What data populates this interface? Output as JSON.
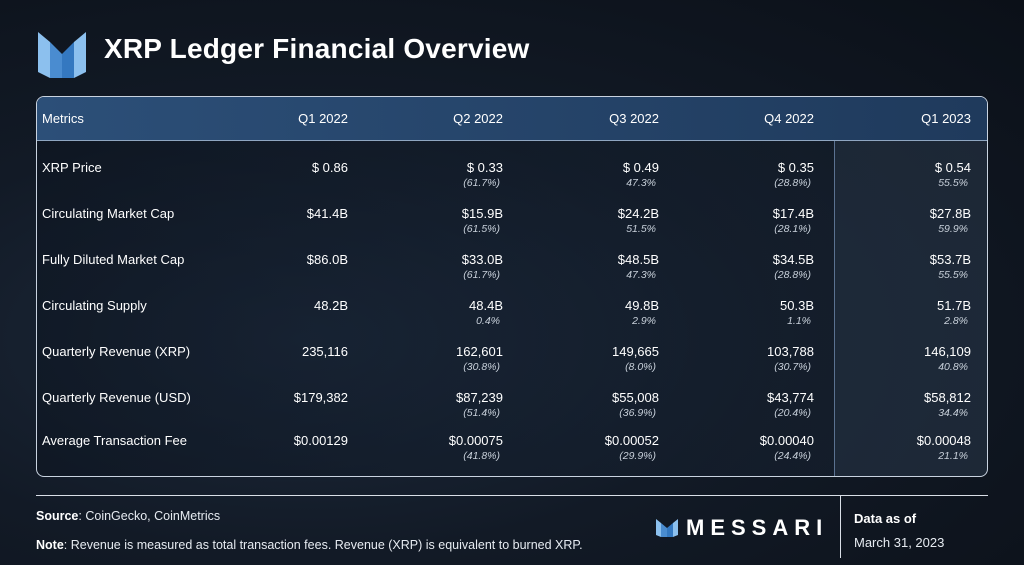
{
  "header": {
    "title": "XRP Ledger Financial Overview"
  },
  "table": {
    "columns": [
      "Metrics",
      "Q1 2022",
      "Q2 2022",
      "Q3 2022",
      "Q4 2022",
      "Q1 2023"
    ],
    "rows": [
      {
        "metric": "XRP Price",
        "values": [
          "$ 0.86",
          "$ 0.33",
          "$ 0.49",
          "$ 0.35",
          "$ 0.54"
        ],
        "changes": [
          "",
          "(61.7%)",
          "47.3%",
          "(28.8%)",
          "55.5%"
        ]
      },
      {
        "metric": "Circulating Market Cap",
        "values": [
          "$41.4B",
          "$15.9B",
          "$24.2B",
          "$17.4B",
          "$27.8B"
        ],
        "changes": [
          "",
          "(61.5%)",
          "51.5%",
          "(28.1%)",
          "59.9%"
        ]
      },
      {
        "metric": "Fully Diluted Market Cap",
        "values": [
          "$86.0B",
          "$33.0B",
          "$48.5B",
          "$34.5B",
          "$53.7B"
        ],
        "changes": [
          "",
          "(61.7%)",
          "47.3%",
          "(28.8%)",
          "55.5%"
        ]
      },
      {
        "metric": "Circulating Supply",
        "values": [
          "48.2B",
          "48.4B",
          "49.8B",
          "50.3B",
          "51.7B"
        ],
        "changes": [
          "",
          "0.4%",
          "2.9%",
          "1.1%",
          "2.8%"
        ]
      },
      {
        "metric": "Quarterly Revenue (XRP)",
        "values": [
          "235,116",
          "162,601",
          "149,665",
          "103,788",
          "146,109"
        ],
        "changes": [
          "",
          "(30.8%)",
          "(8.0%)",
          "(30.7%)",
          "40.8%"
        ]
      },
      {
        "metric": "Quarterly Revenue (USD)",
        "values": [
          "$179,382",
          "$87,239",
          "$55,008",
          "$43,774",
          "$58,812"
        ],
        "changes": [
          "",
          "(51.4%)",
          "(36.9%)",
          "(20.4%)",
          "34.4%"
        ]
      },
      {
        "metric": "Average Transaction Fee",
        "values": [
          "$0.00129",
          "$0.00075",
          "$0.00052",
          "$0.00040",
          "$0.00048"
        ],
        "changes": [
          "",
          "(41.8%)",
          "(29.9%)",
          "(24.4%)",
          "21.1%"
        ]
      }
    ]
  },
  "footer": {
    "source_label": "Source",
    "source_text": ": CoinGecko, CoinMetrics",
    "note_label": "Note",
    "note_text": ": Revenue is measured as total transaction fees. Revenue (XRP) is equivalent to burned XRP.",
    "brand": "MESSARI",
    "asof_label": "Data as of",
    "asof_date": "March 31, 2023"
  },
  "colors": {
    "accent_logo_light": "#7fb4e6",
    "accent_logo_dark": "#3d7fc4",
    "header_bg": "#2c4f78"
  },
  "icons": {
    "title_logo": "messari-m-logo-icon",
    "brand_logo": "messari-small-logo-icon"
  }
}
